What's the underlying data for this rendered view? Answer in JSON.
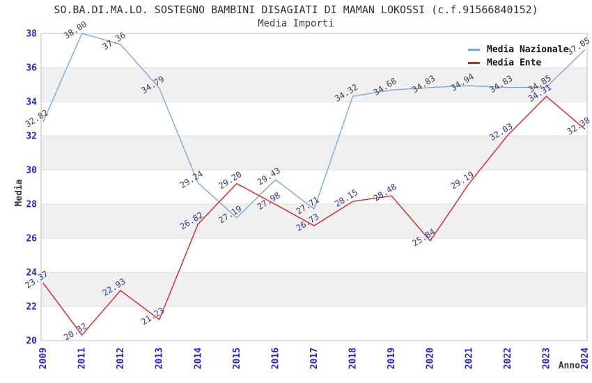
{
  "chart_data": {
    "type": "line",
    "title": "SO.BA.DI.MA.LO. SOSTEGNO BAMBINI DISAGIATI DI MAMAN LOKOSSI (c.f.91566840152)",
    "subtitle": "Media Importi",
    "xlabel": "Anno",
    "ylabel": "Media",
    "categories": [
      "2009",
      "2011",
      "2012",
      "2013",
      "2014",
      "2015",
      "2016",
      "2017",
      "2018",
      "2019",
      "2020",
      "2021",
      "2022",
      "2023",
      "2024"
    ],
    "series": [
      {
        "name": "Media Nazionale",
        "color": "#79A8DC",
        "label_color": "#3F3F3F",
        "values": [
          32.82,
          38.0,
          37.36,
          34.79,
          29.24,
          27.19,
          29.43,
          27.71,
          34.32,
          34.68,
          34.83,
          34.94,
          34.83,
          34.85,
          37.05
        ]
      },
      {
        "name": "Media Ente",
        "color": "#DD2222",
        "label_color": "#333399",
        "values": [
          23.37,
          20.32,
          22.93,
          21.23,
          26.82,
          29.2,
          27.98,
          26.73,
          28.15,
          28.48,
          25.84,
          29.19,
          32.03,
          34.31,
          32.38
        ]
      }
    ],
    "ylim": [
      20,
      38
    ],
    "ytick_step": 2,
    "grid": "horizontal",
    "alternating_bands": true,
    "legend_position": "top-right",
    "colors": {
      "tick_label": "#2525CE",
      "band": "#F0F0F0",
      "gridline": "#DCDCDC",
      "frame": "#BDBDBD",
      "title": "#303030",
      "axis_label": "#3A3A3A"
    }
  }
}
